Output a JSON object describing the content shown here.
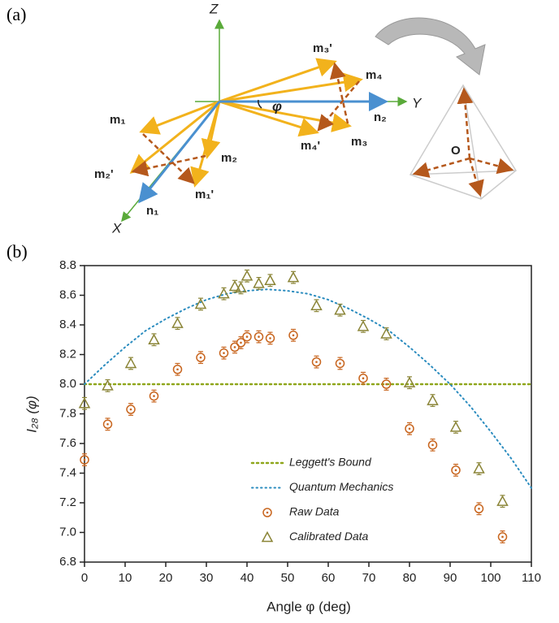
{
  "diagram": {
    "panel_label": "(a)",
    "axes": {
      "z": "Z",
      "y": "Y",
      "x": "X"
    },
    "vectors": {
      "n1": "n₁",
      "n2": "n₂",
      "m1": "m₁",
      "m2": "m₂",
      "m3": "m₃",
      "m4": "m₄",
      "m1p": "m₁'",
      "m2p": "m₂'",
      "m3p": "m₃'",
      "m4p": "m₄'"
    },
    "angle": "φ",
    "origin": "O"
  },
  "chart_data": {
    "type": "scatter",
    "panel_label": "(b)",
    "x_label": "Angle φ (deg)",
    "y_label": "I₂₈ (φ)",
    "xlim": [
      0,
      110
    ],
    "xticks": [
      0,
      10,
      20,
      30,
      40,
      50,
      60,
      70,
      80,
      90,
      100,
      110
    ],
    "ylim": [
      6.8,
      8.8
    ],
    "yticks": [
      6.8,
      {
        "value": 7,
        "label": "7.0"
      },
      7.2,
      7.4,
      7.6,
      7.8,
      {
        "value": 8,
        "label": "8.0"
      },
      8.2,
      8.4,
      8.6,
      8.8
    ],
    "series": [
      {
        "name": "Leggett's Bound",
        "kind": "line",
        "color": "#8fa61b",
        "x": [
          0,
          110
        ],
        "values": [
          8,
          8
        ]
      },
      {
        "name": "Quantum Mechanics",
        "kind": "line",
        "color": "#2b8cbf",
        "x": [
          0,
          5,
          10,
          15,
          20,
          25,
          30,
          35,
          40,
          45,
          50,
          55,
          60,
          65,
          70,
          75,
          80,
          85,
          90,
          95,
          100,
          105,
          110
        ],
        "values": [
          8.0,
          8.13,
          8.25,
          8.36,
          8.44,
          8.51,
          8.57,
          8.61,
          8.63,
          8.64,
          8.63,
          8.61,
          8.57,
          8.51,
          8.44,
          8.36,
          8.25,
          8.13,
          8.0,
          7.85,
          7.68,
          7.5,
          7.3
        ]
      },
      {
        "name": "Raw Data",
        "kind": "circle",
        "color": "#c8651e",
        "x": [
          0,
          5.7,
          11.4,
          17.1,
          22.9,
          28.6,
          34.3,
          37,
          38.5,
          40,
          42.9,
          45.7,
          51.4,
          57.1,
          62.9,
          68.6,
          74.3,
          80,
          85.7,
          91.4,
          97.1,
          102.9
        ],
        "values": [
          7.49,
          7.73,
          7.83,
          7.92,
          8.1,
          8.18,
          8.21,
          8.25,
          8.28,
          8.32,
          8.32,
          8.31,
          8.33,
          8.15,
          8.14,
          8.04,
          8.0,
          7.7,
          7.59,
          7.42,
          7.16,
          6.97
        ],
        "errors": [
          0.04,
          0.04,
          0.04,
          0.04,
          0.04,
          0.04,
          0.04,
          0.04,
          0.04,
          0.04,
          0.04,
          0.04,
          0.04,
          0.04,
          0.04,
          0.04,
          0.04,
          0.04,
          0.04,
          0.04,
          0.04,
          0.04
        ]
      },
      {
        "name": "Calibrated Data",
        "kind": "triangle",
        "color": "#8a8436",
        "x": [
          0,
          5.7,
          11.4,
          17.1,
          22.9,
          28.6,
          34.3,
          37,
          38.5,
          40,
          42.9,
          45.7,
          51.4,
          57.1,
          62.9,
          68.6,
          74.3,
          80,
          85.7,
          91.4,
          97.1,
          102.9
        ],
        "values": [
          7.87,
          7.99,
          8.14,
          8.3,
          8.41,
          8.54,
          8.61,
          8.66,
          8.65,
          8.73,
          8.68,
          8.7,
          8.72,
          8.53,
          8.5,
          8.39,
          8.34,
          8.01,
          7.89,
          7.71,
          7.43,
          7.21
        ],
        "errors": [
          0.04,
          0.04,
          0.04,
          0.04,
          0.04,
          0.04,
          0.04,
          0.04,
          0.04,
          0.04,
          0.04,
          0.04,
          0.04,
          0.04,
          0.04,
          0.04,
          0.04,
          0.04,
          0.04,
          0.04,
          0.04,
          0.04
        ]
      }
    ]
  }
}
